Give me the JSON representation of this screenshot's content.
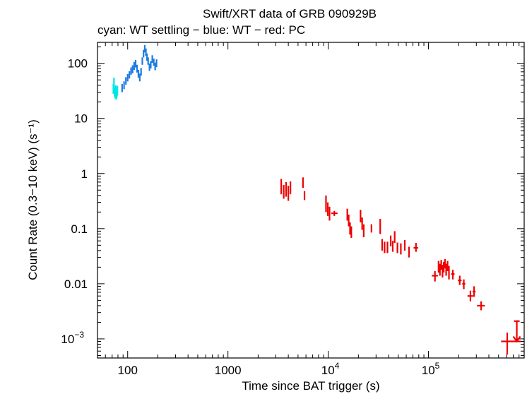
{
  "chart_data": {
    "type": "scatter",
    "title": "Swift/XRT data of GRB 090929B",
    "subtitle": "cyan: WT settling − blue: WT − red: PC",
    "xlabel": "Time since BAT trigger (s)",
    "ylabel": "Count Rate (0.3−10 keV) (s⁻¹)",
    "xscale": "log",
    "yscale": "log",
    "xlim": [
      50,
      900000
    ],
    "ylim": [
      0.00045,
      240
    ],
    "x_tick_labels": [
      {
        "value": 100,
        "base": "100",
        "exp": ""
      },
      {
        "value": 1000,
        "base": "1000",
        "exp": ""
      },
      {
        "value": 10000,
        "base": "10",
        "exp": "4"
      },
      {
        "value": 100000,
        "base": "10",
        "exp": "5"
      }
    ],
    "y_tick_labels": [
      {
        "value": 100,
        "base": "100",
        "exp": ""
      },
      {
        "value": 10,
        "base": "10",
        "exp": ""
      },
      {
        "value": 1,
        "base": "1",
        "exp": ""
      },
      {
        "value": 0.1,
        "base": "0.1",
        "exp": ""
      },
      {
        "value": 0.01,
        "base": "0.01",
        "exp": ""
      },
      {
        "value": 0.001,
        "base": "10",
        "exp": "−3"
      }
    ],
    "series": [
      {
        "name": "WT settling",
        "color": "#00e5e5",
        "points": [
          {
            "x": 72,
            "y": 35,
            "ylo": 28,
            "yhi": 42
          },
          {
            "x": 73,
            "y": 42,
            "ylo": 33,
            "yhi": 55
          },
          {
            "x": 74,
            "y": 30,
            "ylo": 25,
            "yhi": 36
          },
          {
            "x": 75,
            "y": 28,
            "ylo": 23,
            "yhi": 33
          },
          {
            "x": 76,
            "y": 32,
            "ylo": 26,
            "yhi": 40
          },
          {
            "x": 77,
            "y": 27,
            "ylo": 22,
            "yhi": 33
          },
          {
            "x": 78,
            "y": 30,
            "ylo": 24,
            "yhi": 37
          },
          {
            "x": 79,
            "y": 32,
            "ylo": 26,
            "yhi": 39
          }
        ]
      },
      {
        "name": "WT",
        "color": "#1e7be0",
        "points": [
          {
            "x": 88,
            "y": 35,
            "ylo": 30,
            "yhi": 42
          },
          {
            "x": 92,
            "y": 40,
            "ylo": 34,
            "yhi": 47
          },
          {
            "x": 96,
            "y": 48,
            "ylo": 41,
            "yhi": 56
          },
          {
            "x": 100,
            "y": 55,
            "ylo": 47,
            "yhi": 64
          },
          {
            "x": 104,
            "y": 62,
            "ylo": 53,
            "yhi": 72
          },
          {
            "x": 108,
            "y": 72,
            "ylo": 62,
            "yhi": 84
          },
          {
            "x": 112,
            "y": 78,
            "ylo": 66,
            "yhi": 92
          },
          {
            "x": 116,
            "y": 90,
            "ylo": 76,
            "yhi": 106
          },
          {
            "x": 120,
            "y": 98,
            "ylo": 84,
            "yhi": 115
          },
          {
            "x": 124,
            "y": 80,
            "ylo": 68,
            "yhi": 94
          },
          {
            "x": 128,
            "y": 65,
            "ylo": 55,
            "yhi": 76
          },
          {
            "x": 132,
            "y": 55,
            "ylo": 47,
            "yhi": 65
          },
          {
            "x": 136,
            "y": 70,
            "ylo": 60,
            "yhi": 82
          },
          {
            "x": 140,
            "y": 110,
            "ylo": 94,
            "yhi": 128
          },
          {
            "x": 144,
            "y": 150,
            "ylo": 128,
            "yhi": 175
          },
          {
            "x": 148,
            "y": 185,
            "ylo": 158,
            "yhi": 215
          },
          {
            "x": 152,
            "y": 160,
            "ylo": 137,
            "yhi": 186
          },
          {
            "x": 156,
            "y": 130,
            "ylo": 111,
            "yhi": 151
          },
          {
            "x": 160,
            "y": 110,
            "ylo": 94,
            "yhi": 128
          },
          {
            "x": 165,
            "y": 85,
            "ylo": 73,
            "yhi": 99
          },
          {
            "x": 170,
            "y": 95,
            "ylo": 81,
            "yhi": 110
          },
          {
            "x": 176,
            "y": 120,
            "ylo": 102,
            "yhi": 140
          },
          {
            "x": 182,
            "y": 105,
            "ylo": 90,
            "yhi": 122
          },
          {
            "x": 188,
            "y": 88,
            "ylo": 75,
            "yhi": 103
          },
          {
            "x": 194,
            "y": 100,
            "ylo": 85,
            "yhi": 118
          }
        ]
      },
      {
        "name": "PC",
        "color": "#ee0000",
        "points": [
          {
            "x": 3400,
            "y": 0.55,
            "ylo": 0.42,
            "yhi": 0.8
          },
          {
            "x": 3600,
            "y": 0.45,
            "ylo": 0.35,
            "yhi": 0.62
          },
          {
            "x": 3800,
            "y": 0.5,
            "ylo": 0.38,
            "yhi": 0.7
          },
          {
            "x": 4000,
            "y": 0.42,
            "ylo": 0.32,
            "yhi": 0.6
          },
          {
            "x": 4200,
            "y": 0.55,
            "ylo": 0.42,
            "yhi": 0.72
          },
          {
            "x": 5600,
            "y": 0.7,
            "ylo": 0.55,
            "yhi": 0.85
          },
          {
            "x": 5800,
            "y": 0.4,
            "ylo": 0.33,
            "yhi": 0.48
          },
          {
            "x": 9500,
            "y": 0.3,
            "ylo": 0.2,
            "yhi": 0.4
          },
          {
            "x": 9900,
            "y": 0.22,
            "ylo": 0.17,
            "yhi": 0.3
          },
          {
            "x": 10300,
            "y": 0.18,
            "ylo": 0.14,
            "yhi": 0.25
          },
          {
            "x": 11500,
            "y": 0.19,
            "ylo": 0.17,
            "yhi": 0.21,
            "xlo": 10700,
            "xhi": 12400
          },
          {
            "x": 15500,
            "y": 0.18,
            "ylo": 0.14,
            "yhi": 0.23
          },
          {
            "x": 16000,
            "y": 0.14,
            "ylo": 0.11,
            "yhi": 0.18
          },
          {
            "x": 16500,
            "y": 0.1,
            "ylo": 0.078,
            "yhi": 0.13
          },
          {
            "x": 17000,
            "y": 0.085,
            "ylo": 0.068,
            "yhi": 0.11
          },
          {
            "x": 21000,
            "y": 0.17,
            "ylo": 0.13,
            "yhi": 0.22
          },
          {
            "x": 21800,
            "y": 0.12,
            "ylo": 0.095,
            "yhi": 0.16
          },
          {
            "x": 22600,
            "y": 0.09,
            "ylo": 0.07,
            "yhi": 0.12
          },
          {
            "x": 27000,
            "y": 0.1,
            "ylo": 0.085,
            "yhi": 0.12
          },
          {
            "x": 33000,
            "y": 0.11,
            "ylo": 0.08,
            "yhi": 0.15
          },
          {
            "x": 34500,
            "y": 0.05,
            "ylo": 0.04,
            "yhi": 0.065
          },
          {
            "x": 36500,
            "y": 0.045,
            "ylo": 0.036,
            "yhi": 0.058
          },
          {
            "x": 39000,
            "y": 0.045,
            "ylo": 0.036,
            "yhi": 0.058
          },
          {
            "x": 42000,
            "y": 0.06,
            "ylo": 0.048,
            "yhi": 0.075
          },
          {
            "x": 44000,
            "y": 0.048,
            "ylo": 0.038,
            "yhi": 0.06
          },
          {
            "x": 46000,
            "y": 0.07,
            "ylo": 0.055,
            "yhi": 0.09
          },
          {
            "x": 49000,
            "y": 0.045,
            "ylo": 0.036,
            "yhi": 0.056
          },
          {
            "x": 53000,
            "y": 0.043,
            "ylo": 0.034,
            "yhi": 0.054
          },
          {
            "x": 58000,
            "y": 0.05,
            "ylo": 0.04,
            "yhi": 0.062
          },
          {
            "x": 64000,
            "y": 0.038,
            "ylo": 0.03,
            "yhi": 0.047
          },
          {
            "x": 75000,
            "y": 0.045,
            "ylo": 0.038,
            "yhi": 0.055,
            "xlo": 71000,
            "xhi": 79000
          },
          {
            "x": 116000,
            "y": 0.014,
            "ylo": 0.011,
            "yhi": 0.017,
            "xlo": 108000,
            "xhi": 124000
          },
          {
            "x": 126000,
            "y": 0.02,
            "ylo": 0.016,
            "yhi": 0.026
          },
          {
            "x": 130000,
            "y": 0.018,
            "ylo": 0.014,
            "yhi": 0.023
          },
          {
            "x": 134000,
            "y": 0.022,
            "ylo": 0.018,
            "yhi": 0.027
          },
          {
            "x": 138000,
            "y": 0.017,
            "ylo": 0.013,
            "yhi": 0.022
          },
          {
            "x": 142000,
            "y": 0.02,
            "ylo": 0.016,
            "yhi": 0.025
          },
          {
            "x": 146000,
            "y": 0.023,
            "ylo": 0.019,
            "yhi": 0.028
          },
          {
            "x": 150000,
            "y": 0.018,
            "ylo": 0.014,
            "yhi": 0.023
          },
          {
            "x": 155000,
            "y": 0.021,
            "ylo": 0.017,
            "yhi": 0.026
          },
          {
            "x": 160000,
            "y": 0.016,
            "ylo": 0.012,
            "yhi": 0.021
          },
          {
            "x": 175000,
            "y": 0.015,
            "ylo": 0.012,
            "yhi": 0.018,
            "xlo": 168000,
            "xhi": 182000
          },
          {
            "x": 205000,
            "y": 0.0115,
            "ylo": 0.0095,
            "yhi": 0.014,
            "xlo": 196000,
            "xhi": 214000
          },
          {
            "x": 225000,
            "y": 0.01,
            "ylo": 0.008,
            "yhi": 0.012,
            "xlo": 217000,
            "xhi": 233000
          },
          {
            "x": 262000,
            "y": 0.006,
            "ylo": 0.0048,
            "yhi": 0.0075,
            "xlo": 245000,
            "xhi": 279000
          },
          {
            "x": 285000,
            "y": 0.0072,
            "ylo": 0.0058,
            "yhi": 0.009,
            "xlo": 275000,
            "xhi": 295000
          },
          {
            "x": 335000,
            "y": 0.004,
            "ylo": 0.0033,
            "yhi": 0.0048,
            "xlo": 305000,
            "xhi": 365000
          },
          {
            "x": 610000,
            "y": 0.0009,
            "ylo": 0.00052,
            "yhi": 0.0013,
            "xlo": 530000,
            "xhi": 700000
          },
          {
            "x": 760000,
            "y": 0.0009,
            "ylo": 0.0009,
            "yhi": 0.0021,
            "xlo": 700000,
            "xhi": 830000,
            "upper_limit": true
          }
        ]
      }
    ]
  }
}
